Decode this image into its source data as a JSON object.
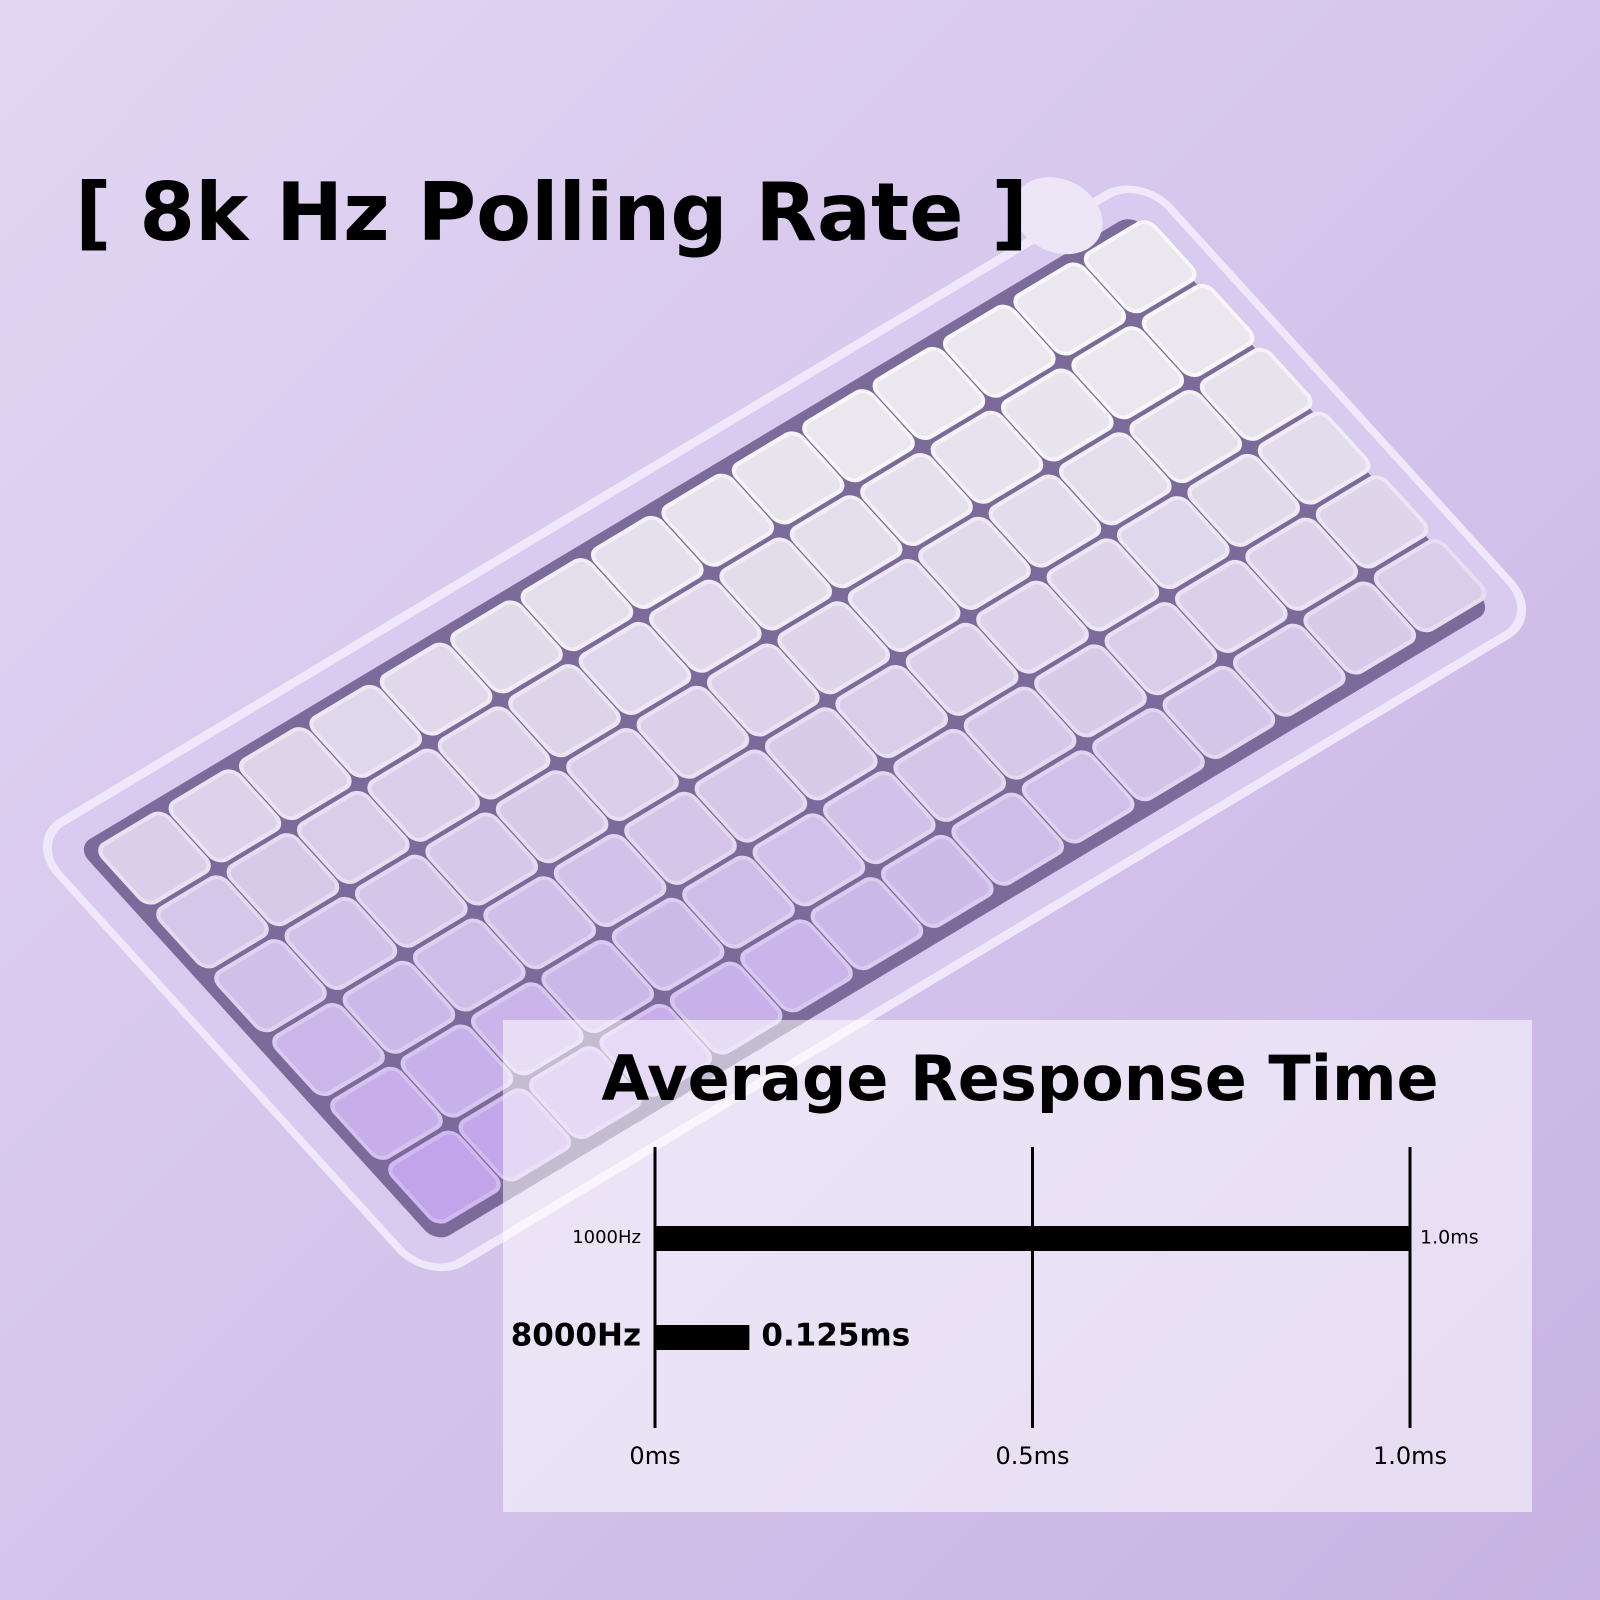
{
  "headline": "[ 8k Hz Polling Rate ]",
  "chart_data": {
    "type": "bar",
    "orientation": "horizontal",
    "title": "Average Response Time",
    "categories": [
      "1000Hz",
      "8000Hz"
    ],
    "values": [
      1.0,
      0.125
    ],
    "value_labels": [
      "1.0ms",
      "0.125ms"
    ],
    "color": "#000000",
    "xlim": [
      0,
      1
    ],
    "xticks": [
      {
        "value": 0,
        "label": "0ms"
      },
      {
        "value": 0.5,
        "label": "0.5ms"
      },
      {
        "value": 1,
        "label": "1.0ms"
      }
    ],
    "grid": true
  }
}
